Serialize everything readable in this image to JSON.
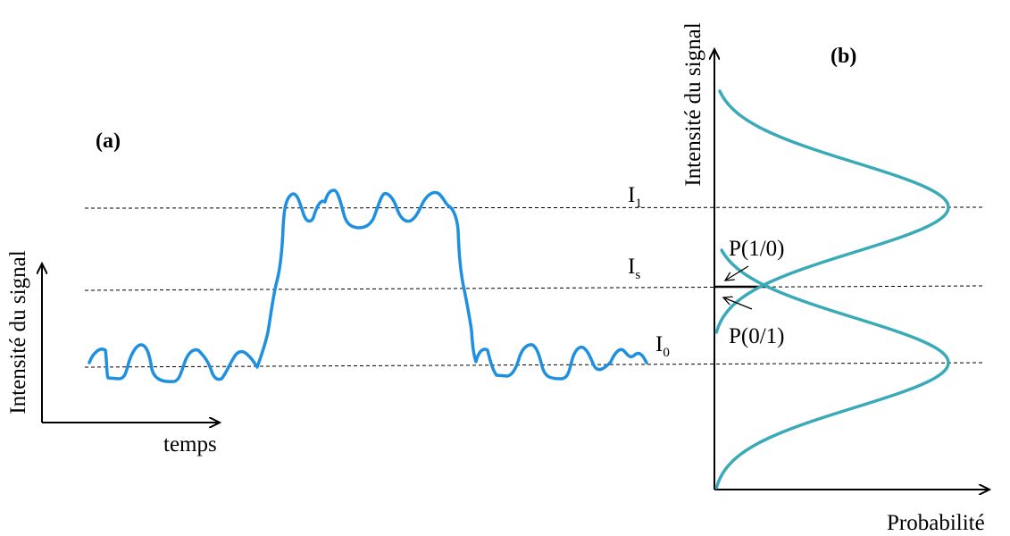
{
  "panel_a": {
    "label": "(a)",
    "y_axis_label": "Intensité du signal",
    "x_axis_label": "temps"
  },
  "panel_b": {
    "label": "(b)",
    "y_axis_label": "Intensité du signal",
    "x_axis_label": "Probabilité"
  },
  "levels": {
    "i1": {
      "base": "I",
      "sub": "1"
    },
    "is": {
      "base": "I",
      "sub": "s"
    },
    "i0": {
      "base": "I",
      "sub": "0"
    }
  },
  "annotations": {
    "p10": "P(1/0)",
    "p01": "P(0/1)"
  },
  "colors": {
    "signal": "#1f8fe0",
    "distribution": "#3aa9b8",
    "axes": "#000000",
    "dashed": "#000000"
  }
}
